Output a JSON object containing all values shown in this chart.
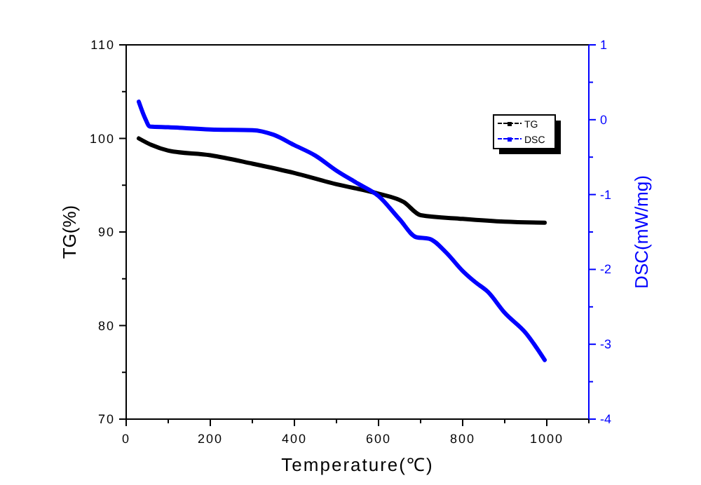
{
  "chart_data": {
    "type": "line",
    "xlabel": "Temperature(℃)",
    "ylabel": "TG(%)",
    "y2label": "DSC(mW/mg)",
    "xlim": [
      0,
      1100
    ],
    "xticks": [
      0,
      {
        "value": 100,
        "label": null
      },
      200,
      {
        "value": 300,
        "label": null
      },
      400,
      {
        "value": 500,
        "label": null
      },
      600,
      {
        "value": 700,
        "label": null
      },
      800,
      {
        "value": 900,
        "label": null
      },
      1000,
      {
        "value": 1100,
        "label": null
      }
    ],
    "ylim": [
      70,
      110
    ],
    "yticks": [
      70,
      {
        "value": 75,
        "label": null
      },
      80,
      {
        "value": 85,
        "label": null
      },
      90,
      {
        "value": 95,
        "label": null
      },
      100,
      {
        "value": 105,
        "label": null
      },
      110
    ],
    "y2lim": [
      -4,
      1
    ],
    "y2ticks": [
      -4,
      {
        "value": -3.5,
        "label": null
      },
      -3,
      {
        "value": -2.5,
        "label": null
      },
      -2,
      {
        "value": -1.5,
        "label": null
      },
      -1,
      {
        "value": -0.5,
        "label": null
      },
      0,
      {
        "value": 0.5,
        "label": null
      },
      1
    ],
    "grid": false,
    "legend": "top right",
    "series": [
      {
        "name": "TG",
        "color": "#000000",
        "x": [
          30,
          60,
          100,
          200,
          300,
          400,
          500,
          600,
          660,
          700,
          800,
          900,
          995
        ],
        "values": [
          100,
          99.3,
          98.7,
          98.2,
          97.3,
          96.3,
          95.1,
          94.1,
          93.2,
          91.8,
          91.4,
          91.1,
          91.0
        ]
      },
      {
        "name": "DSC",
        "color": "#0000ff",
        "axis": "y2",
        "x": [
          30,
          45,
          56,
          100,
          200,
          300,
          350,
          400,
          450,
          500,
          550,
          600,
          650,
          690,
          720,
          760,
          800,
          830,
          860,
          900,
          950,
          995
        ],
        "values": [
          0.24,
          0.02,
          -0.09,
          -0.1,
          -0.13,
          -0.14,
          -0.2,
          -0.34,
          -0.48,
          -0.68,
          -0.85,
          -1.02,
          -1.33,
          -1.57,
          -1.59,
          -1.77,
          -2.02,
          -2.17,
          -2.3,
          -2.58,
          -2.85,
          -3.21
        ]
      }
    ]
  }
}
